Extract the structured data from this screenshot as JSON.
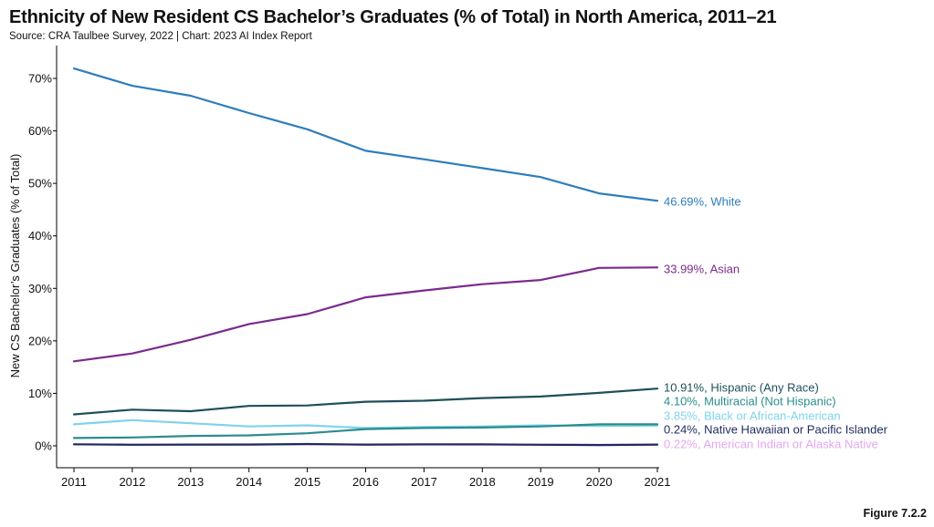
{
  "header": {
    "title": "Ethnicity of New Resident CS Bachelor’s Graduates (% of Total) in North America, 2011–21",
    "source": "Source: CRA Taulbee Survey, 2022 | Chart: 2023 AI Index Report"
  },
  "footer": {
    "figure_label": "Figure 7.2.2"
  },
  "chart_data": {
    "type": "line",
    "title": "Ethnicity of New Resident CS Bachelor’s Graduates (% of Total) in North America, 2011–21",
    "xlabel": "",
    "ylabel": "New CS Bachelor’s Graduates (% of Total)",
    "x": [
      2011,
      2012,
      2013,
      2014,
      2015,
      2016,
      2017,
      2018,
      2019,
      2020,
      2021
    ],
    "ylim": [
      -4,
      75
    ],
    "yticks": [
      0,
      10,
      20,
      30,
      40,
      50,
      60,
      70
    ],
    "ytick_labels": [
      "0%",
      "10%",
      "20%",
      "30%",
      "40%",
      "50%",
      "60%",
      "70%"
    ],
    "grid": false,
    "series": [
      {
        "name": "White",
        "label": "46.69%, White",
        "color": "#2e7dbb",
        "values": [
          71.9,
          68.6,
          66.7,
          63.4,
          60.3,
          56.2,
          54.6,
          52.9,
          51.2,
          48.1,
          46.69
        ]
      },
      {
        "name": "Asian",
        "label": "33.99%, Asian",
        "color": "#7b2a8e",
        "values": [
          16.1,
          17.6,
          20.2,
          23.2,
          25.1,
          28.3,
          29.6,
          30.8,
          31.6,
          33.9,
          33.99
        ]
      },
      {
        "name": "Hispanic (Any Race)",
        "label": "10.91%, Hispanic (Any Race)",
        "color": "#1f4f58",
        "values": [
          6.0,
          6.9,
          6.6,
          7.6,
          7.7,
          8.4,
          8.6,
          9.1,
          9.4,
          10.1,
          10.91
        ]
      },
      {
        "name": "Multiracial (Not Hispanic)",
        "label": "4.10%, Multiracial (Not Hispanic)",
        "color": "#2a8c8c",
        "values": [
          1.5,
          1.6,
          1.9,
          2.0,
          2.4,
          3.2,
          3.4,
          3.5,
          3.7,
          4.1,
          4.1
        ]
      },
      {
        "name": "Black or African-American",
        "label": "3.85%, Black or African-American",
        "color": "#7fd3ec",
        "values": [
          4.1,
          4.9,
          4.3,
          3.7,
          3.9,
          3.4,
          3.6,
          3.7,
          3.9,
          3.8,
          3.85
        ]
      },
      {
        "name": "Native Hawaiian or Pacific Islander",
        "label": "0.24%, Native Hawaiian or Pacific Islander",
        "color": "#1e2a5e",
        "values": [
          0.3,
          0.2,
          0.25,
          0.25,
          0.35,
          0.25,
          0.3,
          0.3,
          0.2,
          0.15,
          0.24
        ]
      },
      {
        "name": "American Indian or Alaska Native",
        "label": "0.22%, American Indian or Alaska Native",
        "color": "#e5a6f0",
        "values": [
          0.3,
          0.25,
          0.25,
          0.3,
          0.3,
          0.2,
          0.25,
          0.2,
          0.25,
          0.2,
          0.22
        ]
      }
    ]
  }
}
